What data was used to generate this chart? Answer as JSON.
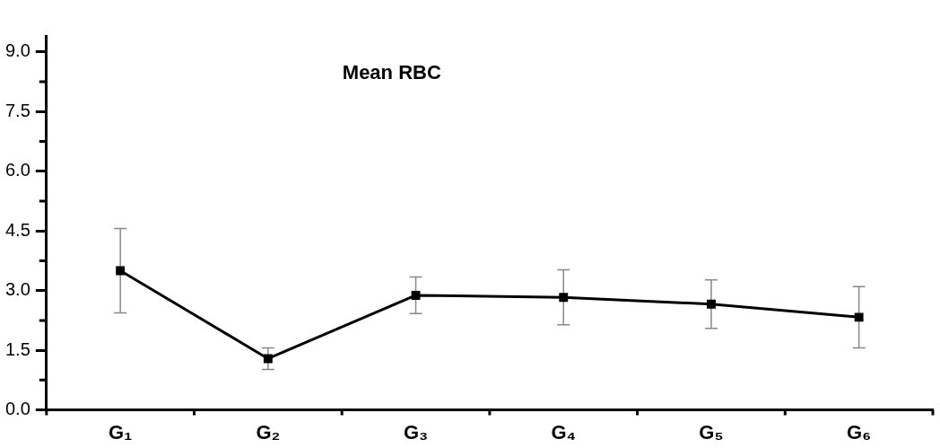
{
  "chart_data": {
    "type": "line",
    "title": "Mean RBC",
    "categories": [
      "G₁",
      "G₂",
      "G₃",
      "G₄",
      "G₅",
      "G₆"
    ],
    "series": [
      {
        "color": "#000000",
        "values": [
          3.5,
          1.29,
          2.88,
          2.83,
          2.66,
          2.33
        ],
        "errors": [
          1.06,
          0.27,
          0.46,
          0.69,
          0.61,
          0.77
        ]
      }
    ],
    "ylim": [
      0,
      9.4
    ],
    "yticks": [
      {
        "value": 0,
        "label": "0.0"
      },
      {
        "value": 1.5,
        "label": "1.5"
      },
      {
        "value": 3,
        "label": "3.0"
      },
      {
        "value": 4.5,
        "label": "4.5"
      },
      {
        "value": 6,
        "label": "6.0"
      },
      {
        "value": 7.5,
        "label": "7.5"
      },
      {
        "value": 9,
        "label": "9.0"
      }
    ],
    "grid": false,
    "legend": false,
    "marker": "square",
    "line_style": "solid"
  }
}
